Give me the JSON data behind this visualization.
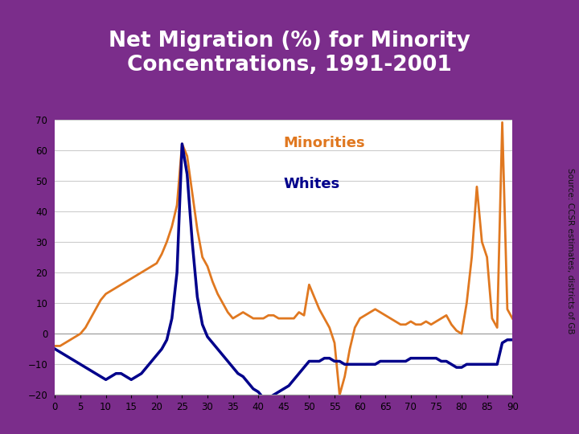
{
  "title_line1": "Net Migration (%) for Minority",
  "title_line2": "Concentrations, 1991-2001",
  "title_bg_color": "#7B2D8B",
  "title_text_color": "#FFFFFF",
  "bg_color": "#FFFFFF",
  "plot_bg_color": "#FFFFFF",
  "minorities_color": "#E07820",
  "whites_color": "#00008B",
  "source_text": "Source: CCSR estimates, districts of GB",
  "xlim": [
    0,
    90
  ],
  "ylim": [
    -20,
    70
  ],
  "yticks": [
    -20,
    -10,
    0,
    10,
    20,
    30,
    40,
    50,
    60,
    70
  ],
  "xticks": [
    0,
    5,
    10,
    15,
    20,
    25,
    30,
    35,
    40,
    45,
    50,
    55,
    60,
    65,
    70,
    75,
    80,
    85,
    90
  ],
  "minorities_x": [
    0,
    1,
    2,
    3,
    4,
    5,
    6,
    7,
    8,
    9,
    10,
    11,
    12,
    13,
    14,
    15,
    16,
    17,
    18,
    19,
    20,
    21,
    22,
    23,
    24,
    25,
    26,
    27,
    28,
    29,
    30,
    31,
    32,
    33,
    34,
    35,
    36,
    37,
    38,
    39,
    40,
    41,
    42,
    43,
    44,
    45,
    46,
    47,
    48,
    49,
    50,
    51,
    52,
    53,
    54,
    55,
    56,
    57,
    58,
    59,
    60,
    61,
    62,
    63,
    64,
    65,
    66,
    67,
    68,
    69,
    70,
    71,
    72,
    73,
    74,
    75,
    76,
    77,
    78,
    79,
    80,
    81,
    82,
    83,
    84,
    85,
    86,
    87,
    88,
    89,
    90
  ],
  "minorities_y": [
    -4,
    -4,
    -3,
    -2,
    -1,
    0,
    2,
    5,
    8,
    11,
    13,
    14,
    15,
    16,
    17,
    18,
    19,
    20,
    21,
    22,
    23,
    26,
    30,
    35,
    42,
    62,
    58,
    46,
    34,
    25,
    22,
    17,
    13,
    10,
    7,
    5,
    6,
    7,
    6,
    5,
    5,
    5,
    6,
    6,
    5,
    5,
    5,
    5,
    7,
    6,
    16,
    12,
    8,
    5,
    2,
    -3,
    -20,
    -14,
    -5,
    2,
    5,
    6,
    7,
    8,
    7,
    6,
    5,
    4,
    3,
    3,
    4,
    3,
    3,
    4,
    3,
    4,
    5,
    6,
    3,
    1,
    0,
    10,
    25,
    48,
    30,
    25,
    5,
    2,
    69,
    8,
    5
  ],
  "whites_x": [
    0,
    1,
    2,
    3,
    4,
    5,
    6,
    7,
    8,
    9,
    10,
    11,
    12,
    13,
    14,
    15,
    16,
    17,
    18,
    19,
    20,
    21,
    22,
    23,
    24,
    25,
    26,
    27,
    28,
    29,
    30,
    31,
    32,
    33,
    34,
    35,
    36,
    37,
    38,
    39,
    40,
    41,
    42,
    43,
    44,
    45,
    46,
    47,
    48,
    49,
    50,
    51,
    52,
    53,
    54,
    55,
    56,
    57,
    58,
    59,
    60,
    61,
    62,
    63,
    64,
    65,
    66,
    67,
    68,
    69,
    70,
    71,
    72,
    73,
    74,
    75,
    76,
    77,
    78,
    79,
    80,
    81,
    82,
    83,
    84,
    85,
    86,
    87,
    88,
    89,
    90
  ],
  "whites_y": [
    -5,
    -6,
    -7,
    -8,
    -9,
    -10,
    -11,
    -12,
    -13,
    -14,
    -15,
    -14,
    -13,
    -13,
    -14,
    -15,
    -14,
    -13,
    -11,
    -9,
    -7,
    -5,
    -2,
    5,
    20,
    62,
    52,
    30,
    12,
    3,
    -1,
    -3,
    -5,
    -7,
    -9,
    -11,
    -13,
    -14,
    -16,
    -18,
    -19,
    -21,
    -21,
    -20,
    -19,
    -18,
    -17,
    -15,
    -13,
    -11,
    -9,
    -9,
    -9,
    -8,
    -8,
    -9,
    -9,
    -10,
    -10,
    -10,
    -10,
    -10,
    -10,
    -10,
    -9,
    -9,
    -9,
    -9,
    -9,
    -9,
    -8,
    -8,
    -8,
    -8,
    -8,
    -8,
    -9,
    -9,
    -10,
    -11,
    -11,
    -10,
    -10,
    -10,
    -10,
    -10,
    -10,
    -10,
    -3,
    -2,
    -2
  ]
}
